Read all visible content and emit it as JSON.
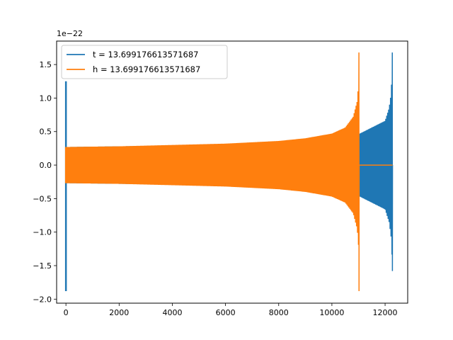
{
  "chart_data": {
    "type": "line",
    "offset_label": "1e−22",
    "xlim": [
      -350,
      12850
    ],
    "ylim": [
      -2.06,
      1.85
    ],
    "x_ticks": [
      0,
      2000,
      4000,
      6000,
      8000,
      10000,
      12000
    ],
    "x_tick_labels": [
      "0",
      "2000",
      "4000",
      "6000",
      "8000",
      "10000",
      "12000"
    ],
    "y_ticks": [
      1.5,
      1.0,
      0.5,
      0.0,
      -0.5,
      -1.0,
      -1.5,
      -2.0
    ],
    "y_tick_labels": [
      "1.5",
      "1.0",
      "0.5",
      "0.0",
      "−0.5",
      "−1.0",
      "−1.5",
      "−2.0"
    ],
    "legend_position": "top-left",
    "series": [
      {
        "name": "t = 13.699176613571687",
        "color": "#1f77b4",
        "x_range": [
          0,
          12280
        ],
        "spike_start": {
          "x": 0,
          "max": 1.25,
          "min": -1.88
        },
        "envelope": [
          {
            "x": 0,
            "amp": 0.27
          },
          {
            "x": 2000,
            "amp": 0.28
          },
          {
            "x": 4000,
            "amp": 0.29
          },
          {
            "x": 6000,
            "amp": 0.31
          },
          {
            "x": 8000,
            "amp": 0.34
          },
          {
            "x": 10000,
            "amp": 0.4
          },
          {
            "x": 11000,
            "amp": 0.46
          },
          {
            "x": 12000,
            "amp": 0.66
          },
          {
            "x": 12150,
            "amp": 0.85
          },
          {
            "x": 12220,
            "amp": 1.05
          },
          {
            "x": 12260,
            "amp": 1.35
          }
        ],
        "spike_end": {
          "x": 12275,
          "max": 1.68,
          "min": -1.58
        }
      },
      {
        "name": "h = 13.699176613571687",
        "color": "#ff7f0e",
        "x_range": [
          0,
          12280
        ],
        "spike_start": {
          "x": 0,
          "max": 0.27,
          "min": -0.27
        },
        "envelope": [
          {
            "x": 0,
            "amp": 0.27
          },
          {
            "x": 2000,
            "amp": 0.28
          },
          {
            "x": 4000,
            "amp": 0.3
          },
          {
            "x": 6000,
            "amp": 0.32
          },
          {
            "x": 8000,
            "amp": 0.36
          },
          {
            "x": 9000,
            "amp": 0.4
          },
          {
            "x": 10000,
            "amp": 0.47
          },
          {
            "x": 10500,
            "amp": 0.56
          },
          {
            "x": 10800,
            "amp": 0.72
          },
          {
            "x": 10950,
            "amp": 0.95
          },
          {
            "x": 11000,
            "amp": 1.2
          }
        ],
        "spike_end": {
          "x": 11020,
          "max": 1.68,
          "min": -1.88
        },
        "flat_after": {
          "x_from": 11030,
          "x_to": 12280,
          "value": 0.0
        }
      }
    ]
  }
}
